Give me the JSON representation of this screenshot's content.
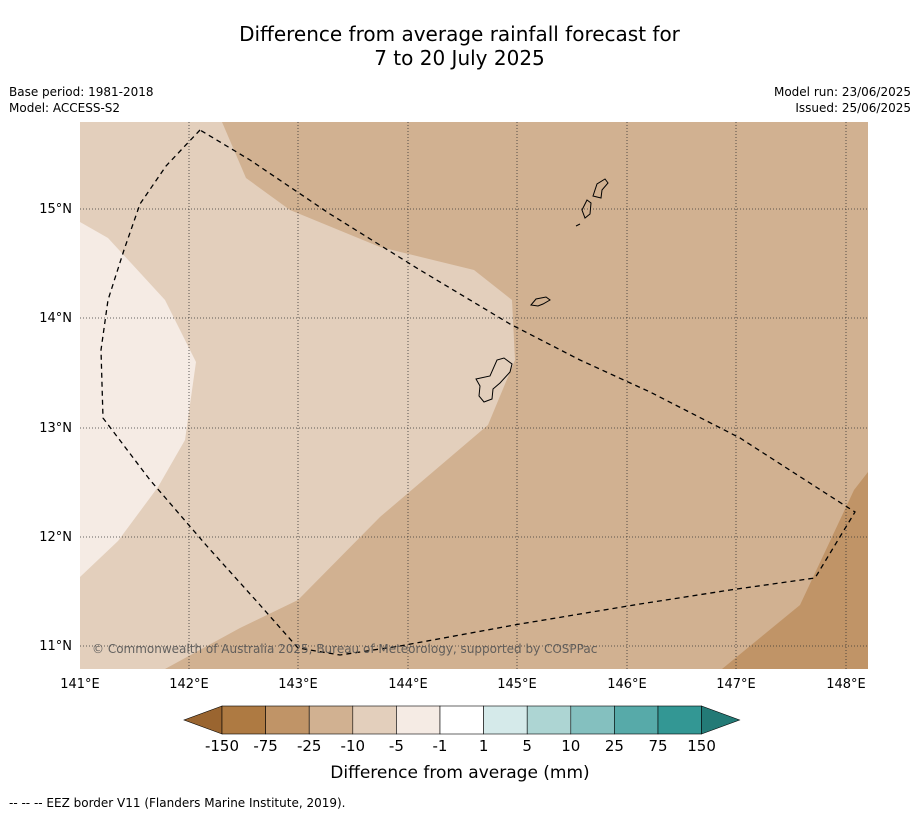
{
  "title_line1": "Difference from average rainfall forecast for",
  "title_line2": "7 to 20 July 2025",
  "base_period": "Base period: 1981-2018",
  "model": "Model: ACCESS-S2",
  "model_run": "Model run: 23/06/2025",
  "issued": "Issued: 25/06/2025",
  "copyright": "© Commonwealth of Australia 2025, Bureau of Meteorology, supported by COSPPac",
  "lat_labels": [
    "15°N",
    "14°N",
    "13°N",
    "12°N",
    "11°N"
  ],
  "lon_labels": [
    "141°E",
    "142°E",
    "143°E",
    "144°E",
    "145°E",
    "146°E",
    "147°E",
    "148°E"
  ],
  "legend": {
    "title": "Difference from average (mm)",
    "ticks": [
      "-150",
      "-75",
      "-25",
      "-10",
      "-5",
      "-1",
      "1",
      "5",
      "10",
      "25",
      "75",
      "150"
    ],
    "colors": [
      "#9a6530",
      "#ae7a42",
      "#c09467",
      "#d1b191",
      "#e3cfbc",
      "#f5ebe4",
      "#ffffff",
      "#d5eaea",
      "#add5d3",
      "#84c0bf",
      "#57aaa9",
      "#339794",
      "#237a76"
    ]
  },
  "footnote": "--  --  -- EEZ border V11 (Flanders Marine Institute, 2019)."
}
